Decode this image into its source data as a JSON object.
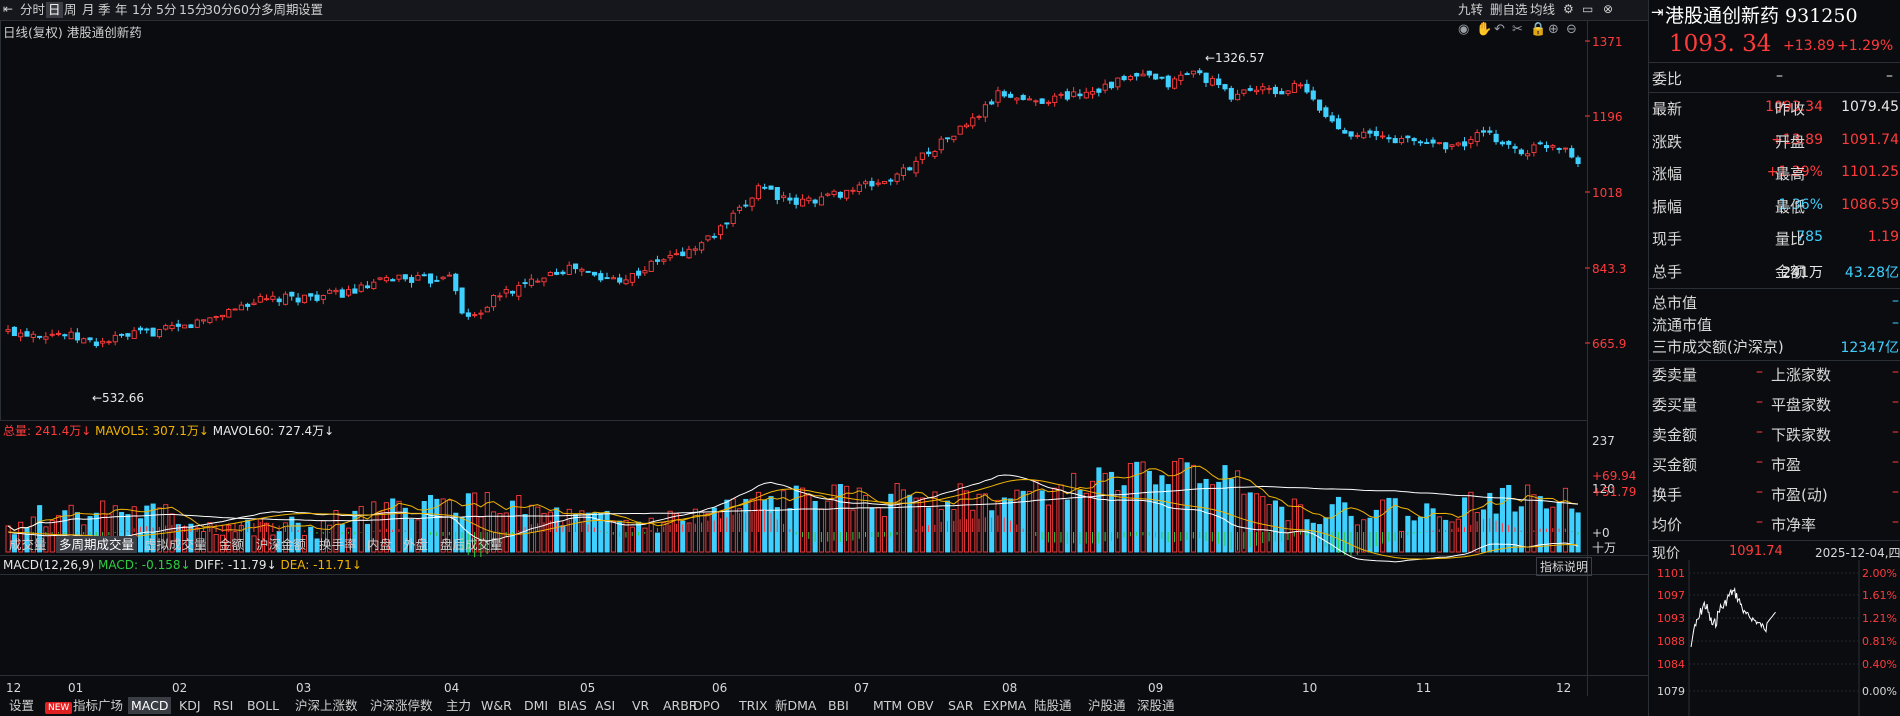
{
  "toolbar": {
    "items": [
      "分时",
      "日",
      "周",
      "月",
      "季",
      "年",
      "1分",
      "5分",
      "15分",
      "30分",
      "60分",
      "多周期",
      "设置"
    ],
    "active": "日",
    "right_items": [
      "九转",
      "删自选",
      "均线"
    ]
  },
  "subtitle": "日线(复权)  港股通创新药",
  "price_axis": [
    "1371",
    "1196",
    "1018",
    "843.3",
    "665.9"
  ],
  "annotations": {
    "high": "1326.57",
    "low": "532.66"
  },
  "volume": {
    "legend_total": "总量: 241.4万↓",
    "legend_ma5": "MAVOL5: 307.1万↓",
    "legend_ma60": "MAVOL60: 727.4万↓",
    "axis": [
      "237",
      "120",
      "十万"
    ]
  },
  "indicator_tabs": [
    "成交量",
    "多周期成交量",
    "虚拟成交量",
    "金额",
    "沪深金额",
    "换手率",
    "内盘",
    "外盘",
    "盘后成交量"
  ],
  "indicator_active": "多周期成交量",
  "macd": {
    "title": "MACD(12,26,9)",
    "macd_label": "MACD: -0.158↓",
    "diff_label": "DIFF: -11.79↓",
    "dea_label": "DEA: -11.71↓",
    "axis": [
      "+69.94",
      "+51.79",
      "+0"
    ],
    "explain_button": "指标说明"
  },
  "months": [
    "12",
    "01",
    "02",
    "03",
    "04",
    "05",
    "06",
    "07",
    "08",
    "09",
    "10",
    "11",
    "12"
  ],
  "bottom_tabs": [
    "设置",
    "NEW",
    "指标广场",
    "MACD",
    "KDJ",
    "RSI",
    "BOLL",
    "沪深上涨数",
    "沪深涨停数",
    "主力",
    "W&R",
    "DMI",
    "BIAS",
    "ASI",
    "VR",
    "ARBR",
    "DPO",
    "TRIX",
    "新DMA",
    "BBI",
    "MTM",
    "OBV",
    "SAR",
    "EXPMA",
    "陆股通",
    "沪股通",
    "深股通"
  ],
  "bottom_active": "MACD",
  "quote": {
    "title": "港股通创新药 931250",
    "price": "1093. 34",
    "change": "+13.89",
    "change_pct": "+1.29%",
    "weibi_label": "委比",
    "weibi_val": "–",
    "weibi_val2": "–",
    "rows": [
      {
        "l1": "最新",
        "v1": "1093.34",
        "c1": "red",
        "l2": "昨收",
        "v2": "1079.45",
        "c2": "white"
      },
      {
        "l1": "涨跌",
        "v1": "+13.89",
        "c1": "red",
        "l2": "开盘",
        "v2": "1091.74",
        "c2": "red"
      },
      {
        "l1": "涨幅",
        "v1": "+1.29%",
        "c1": "red",
        "l2": "最高",
        "v2": "1101.25",
        "c2": "red"
      },
      {
        "l1": "振幅",
        "v1": "1.36%",
        "c1": "cyan",
        "l2": "最低",
        "v2": "1086.59",
        "c2": "red"
      },
      {
        "l1": "现手",
        "v1": "785",
        "c1": "cyan",
        "l2": "量比",
        "v2": "1.19",
        "c2": "red"
      },
      {
        "l1": "总手",
        "v1": "241万",
        "c1": "white",
        "l2": "金额",
        "v2": "43.28亿",
        "c2": "cyan"
      }
    ],
    "market_rows": [
      {
        "label": "总市值",
        "val": "–"
      },
      {
        "label": "流通市值",
        "val": "–"
      },
      {
        "label": "三市成交额(沪深京)",
        "val": "12347亿"
      }
    ],
    "pair_rows": [
      {
        "l1": "委卖量",
        "l2": "上涨家数"
      },
      {
        "l1": "委买量",
        "l2": "平盘家数"
      },
      {
        "l1": "卖金额",
        "l2": "下跌家数"
      },
      {
        "l1": "买金额",
        "l2": "市盈"
      },
      {
        "l1": "换手",
        "l2": "市盈(动)"
      },
      {
        "l1": "均价",
        "l2": "市净率"
      }
    ],
    "dash": "–",
    "mini": {
      "label": "现价",
      "price": "1091.74",
      "date": "2025-12-04,四",
      "left_axis": [
        "1101",
        "1097",
        "1093",
        "1088",
        "1084",
        "1079"
      ],
      "right_axis": [
        "2.00%",
        "1.61%",
        "1.21%",
        "0.81%",
        "0.40%",
        "0.00%"
      ]
    }
  },
  "colors": {
    "up": "#ff3b3b",
    "down": "#3fd0ff",
    "ma_white": "#ffffff",
    "ma_yellow": "#f0b400",
    "bg": "#0b0c10"
  }
}
